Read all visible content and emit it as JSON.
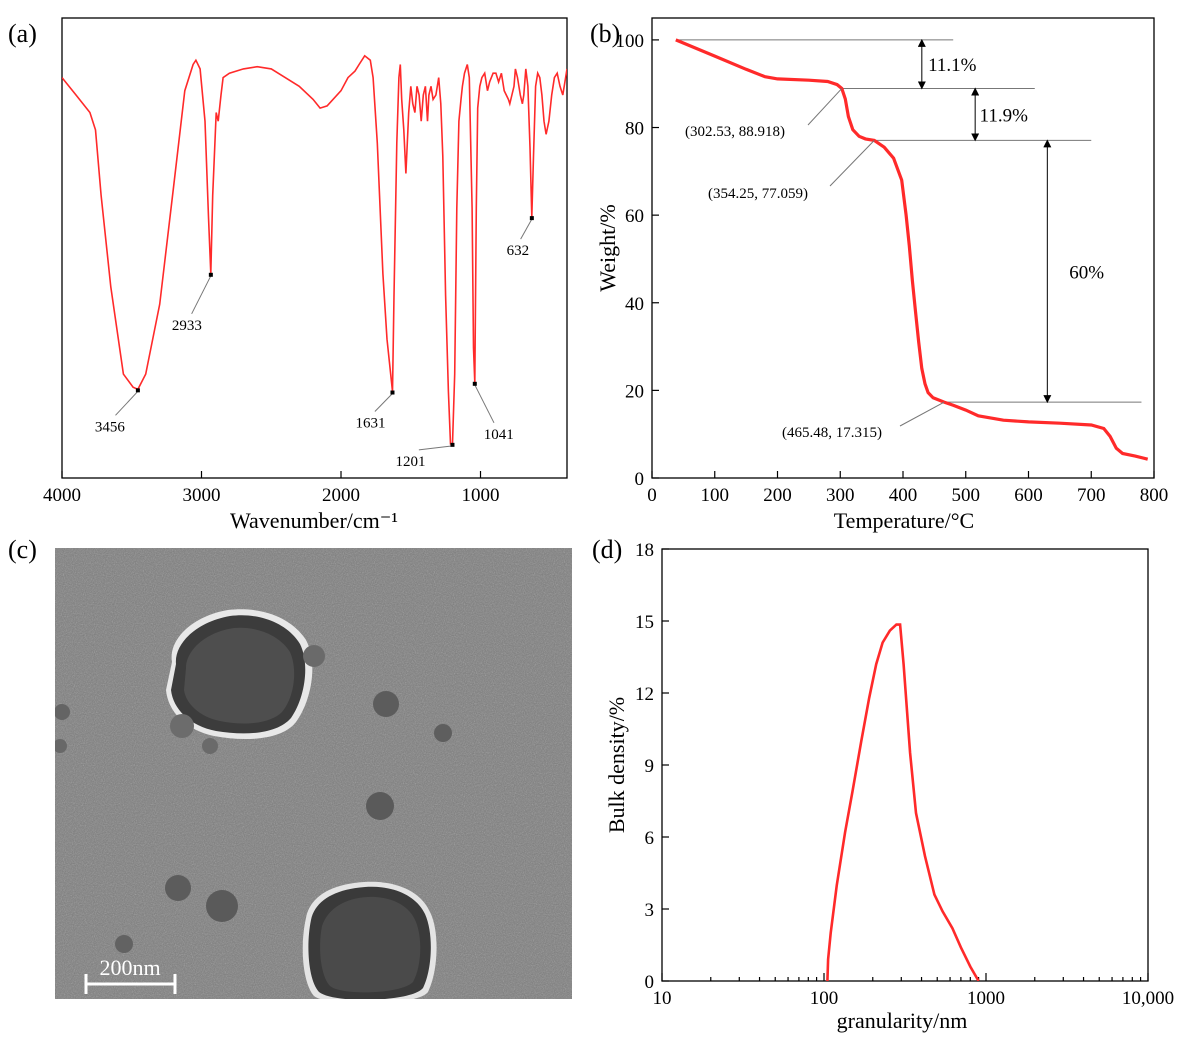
{
  "colors": {
    "curve": "#ff2a2a",
    "tem_background": "#7d7d7d"
  },
  "chart_data": [
    {
      "panel": "(a)",
      "type": "line",
      "xlabel": "Wavenumber/cm⁻¹",
      "ylabel": "",
      "xlim": [
        4000,
        380
      ],
      "x_reversed": true,
      "xticks": [
        "4000",
        "3000",
        "2000",
        "1000"
      ],
      "y_ticks_shown": false,
      "ylim": [
        0,
        100
      ],
      "series": [
        {
          "points": [
            [
              4000,
              90
            ],
            [
              3900,
              86
            ],
            [
              3800,
              82
            ],
            [
              3760,
              78
            ],
            [
              3720,
              63
            ],
            [
              3650,
              42
            ],
            [
              3560,
              22
            ],
            [
              3490,
              19
            ],
            [
              3456,
              18.5
            ],
            [
              3400,
              22
            ],
            [
              3300,
              38
            ],
            [
              3200,
              65
            ],
            [
              3120,
              87
            ],
            [
              3060,
              93
            ],
            [
              3040,
              94
            ],
            [
              3010,
              92
            ],
            [
              2975,
              80
            ],
            [
              2950,
              58
            ],
            [
              2933,
              45
            ],
            [
              2920,
              63
            ],
            [
              2895,
              82
            ],
            [
              2880,
              80
            ],
            [
              2860,
              86
            ],
            [
              2845,
              90
            ],
            [
              2800,
              91
            ],
            [
              2700,
              92
            ],
            [
              2600,
              92.5
            ],
            [
              2500,
              92
            ],
            [
              2400,
              90
            ],
            [
              2300,
              88
            ],
            [
              2200,
              85
            ],
            [
              2150,
              83
            ],
            [
              2100,
              83.5
            ],
            [
              2000,
              87
            ],
            [
              1950,
              90
            ],
            [
              1900,
              91.5
            ],
            [
              1870,
              93
            ],
            [
              1830,
              95
            ],
            [
              1790,
              94
            ],
            [
              1770,
              90
            ],
            [
              1740,
              75
            ],
            [
              1700,
              45
            ],
            [
              1670,
              30
            ],
            [
              1631,
              18
            ],
            [
              1620,
              40
            ],
            [
              1600,
              75
            ],
            [
              1585,
              90
            ],
            [
              1575,
              93
            ],
            [
              1565,
              85
            ],
            [
              1550,
              78
            ],
            [
              1535,
              68
            ],
            [
              1515,
              82
            ],
            [
              1500,
              88
            ],
            [
              1485,
              84
            ],
            [
              1470,
              82
            ],
            [
              1455,
              88
            ],
            [
              1440,
              86
            ],
            [
              1425,
              80
            ],
            [
              1410,
              86
            ],
            [
              1395,
              88
            ],
            [
              1380,
              80
            ],
            [
              1370,
              86
            ],
            [
              1355,
              88
            ],
            [
              1340,
              85
            ],
            [
              1320,
              86
            ],
            [
              1300,
              90
            ],
            [
              1285,
              84
            ],
            [
              1270,
              72
            ],
            [
              1250,
              40
            ],
            [
              1230,
              18
            ],
            [
              1215,
              6
            ],
            [
              1201,
              6
            ],
            [
              1185,
              22
            ],
            [
              1170,
              60
            ],
            [
              1155,
              80
            ],
            [
              1140,
              85
            ],
            [
              1130,
              88
            ],
            [
              1115,
              91
            ],
            [
              1095,
              93
            ],
            [
              1080,
              90
            ],
            [
              1060,
              60
            ],
            [
              1050,
              28
            ],
            [
              1041,
              20
            ],
            [
              1030,
              60
            ],
            [
              1020,
              83
            ],
            [
              1005,
              88
            ],
            [
              990,
              90
            ],
            [
              970,
              91
            ],
            [
              950,
              87
            ],
            [
              935,
              89
            ],
            [
              910,
              91
            ],
            [
              890,
              91
            ],
            [
              870,
              89
            ],
            [
              850,
              91
            ],
            [
              830,
              87
            ],
            [
              800,
              85
            ],
            [
              790,
              84
            ],
            [
              775,
              86
            ],
            [
              760,
              88
            ],
            [
              750,
              92
            ],
            [
              735,
              90
            ],
            [
              715,
              86
            ],
            [
              700,
              84
            ],
            [
              690,
              86
            ],
            [
              675,
              92
            ],
            [
              660,
              88
            ],
            [
              645,
              74
            ],
            [
              632,
              58
            ],
            [
              620,
              72
            ],
            [
              605,
              88
            ],
            [
              590,
              91
            ],
            [
              575,
              90
            ],
            [
              560,
              86
            ],
            [
              545,
              80
            ],
            [
              530,
              77
            ],
            [
              510,
              80
            ],
            [
              490,
              86
            ],
            [
              470,
              90
            ],
            [
              450,
              91
            ],
            [
              430,
              88
            ],
            [
              410,
              86
            ],
            [
              395,
              89
            ],
            [
              380,
              92
            ]
          ]
        }
      ],
      "annotations": [
        {
          "label": "3456",
          "x": 3456,
          "y": 18.5
        },
        {
          "label": "2933",
          "x": 2933,
          "y": 45
        },
        {
          "label": "1631",
          "x": 1631,
          "y": 18
        },
        {
          "label": "1201",
          "x": 1201,
          "y": 6
        },
        {
          "label": "1041",
          "x": 1041,
          "y": 20
        },
        {
          "label": "632",
          "x": 632,
          "y": 58
        }
      ]
    },
    {
      "panel": "(b)",
      "type": "line",
      "xlabel": "Temperature/°C",
      "ylabel": "Weight/%",
      "xlim": [
        0,
        800
      ],
      "ylim": [
        0,
        105
      ],
      "xticks": [
        0,
        100,
        200,
        300,
        400,
        500,
        600,
        700,
        800
      ],
      "yticks": [
        0,
        20,
        40,
        60,
        80,
        100
      ],
      "series": [
        {
          "points": [
            [
              38,
              100
            ],
            [
              60,
              98.7
            ],
            [
              100,
              96.3
            ],
            [
              150,
              93.3
            ],
            [
              180,
              91.6
            ],
            [
              200,
              91.1
            ],
            [
              250,
              90.8
            ],
            [
              280,
              90.5
            ],
            [
              295,
              89.8
            ],
            [
              302.53,
              88.918
            ],
            [
              308,
              86.5
            ],
            [
              313,
              82.5
            ],
            [
              320,
              79.5
            ],
            [
              330,
              78
            ],
            [
              340,
              77.4
            ],
            [
              354.25,
              77.059
            ],
            [
              370,
              75.5
            ],
            [
              385,
              73
            ],
            [
              398,
              68
            ],
            [
              405,
              60
            ],
            [
              410,
              53
            ],
            [
              415,
              45
            ],
            [
              420,
              38
            ],
            [
              425,
              31
            ],
            [
              430,
              25
            ],
            [
              435,
              21.5
            ],
            [
              440,
              19.5
            ],
            [
              448,
              18.3
            ],
            [
              465.48,
              17.315
            ],
            [
              480,
              16.6
            ],
            [
              500,
              15.5
            ],
            [
              520,
              14.2
            ],
            [
              560,
              13.2
            ],
            [
              600,
              12.8
            ],
            [
              650,
              12.5
            ],
            [
              700,
              12.1
            ],
            [
              720,
              11.3
            ],
            [
              730,
              9.5
            ],
            [
              740,
              6.8
            ],
            [
              750,
              5.6
            ],
            [
              770,
              5
            ],
            [
              790,
              4.3
            ]
          ]
        }
      ],
      "annotations": [
        {
          "label": "(302.53, 88.918)",
          "x": 302.53,
          "y": 88.918
        },
        {
          "label": "(354.25, 77.059)",
          "x": 354.25,
          "y": 77.059
        },
        {
          "label": "(465.48, 17.315)",
          "x": 465.48,
          "y": 17.315
        }
      ],
      "loss_labels": [
        "11.1%",
        "11.9%",
        "60%"
      ]
    },
    {
      "panel": "(d)",
      "type": "line",
      "xlabel": "granularity/nm",
      "ylabel": "Bulk density/%",
      "x_scale": "log",
      "xlim": [
        10,
        10000
      ],
      "ylim": [
        0,
        18
      ],
      "xticks": [
        "10",
        "100",
        "1000",
        "10,000"
      ],
      "yticks": [
        0,
        3,
        6,
        9,
        12,
        15,
        18
      ],
      "series": [
        {
          "points": [
            [
              105,
              0
            ],
            [
              106,
              0.9
            ],
            [
              110,
              2
            ],
            [
              120,
              4
            ],
            [
              135,
              6.2
            ],
            [
              150,
              7.9
            ],
            [
              170,
              10
            ],
            [
              190,
              11.8
            ],
            [
              210,
              13.2
            ],
            [
              230,
              14.1
            ],
            [
              255,
              14.6
            ],
            [
              280,
              14.85
            ],
            [
              295,
              14.85
            ],
            [
              310,
              13.2
            ],
            [
              340,
              9.5
            ],
            [
              370,
              7
            ],
            [
              420,
              5.2
            ],
            [
              480,
              3.6
            ],
            [
              540,
              2.9
            ],
            [
              620,
              2.2
            ],
            [
              700,
              1.4
            ],
            [
              800,
              0.6
            ],
            [
              900,
              0
            ]
          ]
        }
      ]
    }
  ],
  "tem_panel": {
    "label": "(c)",
    "scale_bar_label": "200nm"
  }
}
